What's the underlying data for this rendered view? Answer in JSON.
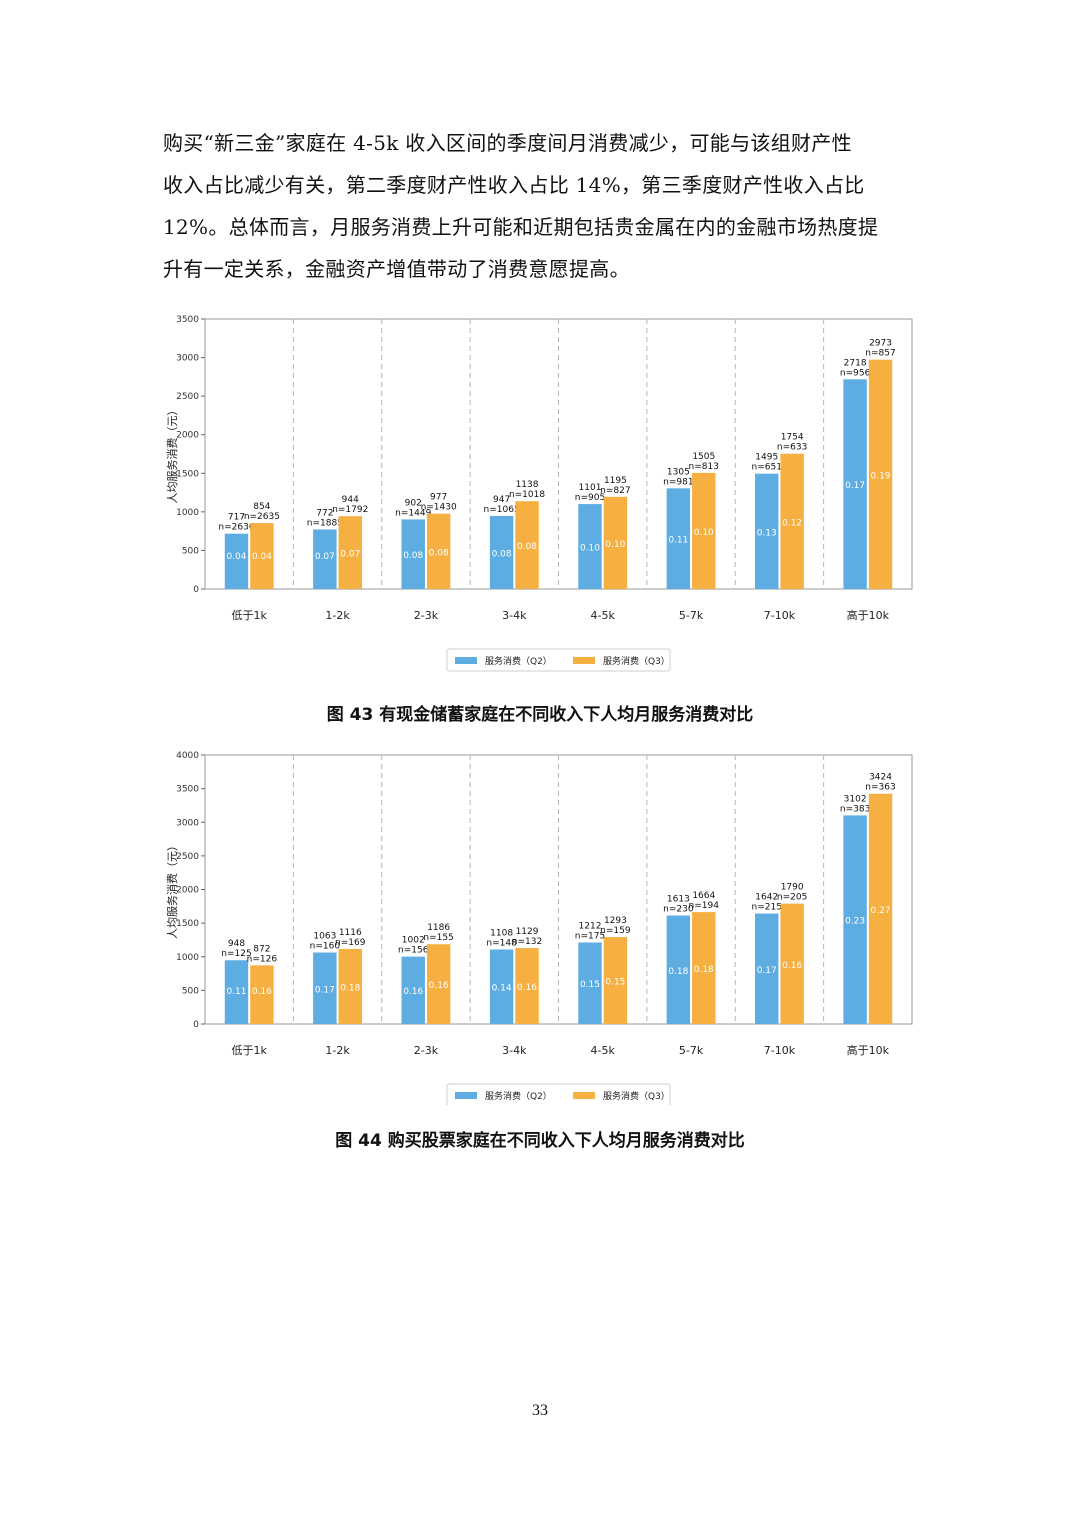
{
  "paragraph": [
    "购买“新三金”家庭在 4-5k 收入区间的季度间月消费减少，可能与该组财产性",
    "收入占比减少有关，第二季度财产性收入占比 14%，第三季度财产性收入占比",
    "12%。总体而言，月服务消费上升可能和近期包括贵金属在内的金融市场热度提",
    "升有一定关系，金融资产增值带动了消费意愿提高。"
  ],
  "chart_data": [
    {
      "type": "bar",
      "ylabel": "人均服务消费（元）",
      "ylim": [
        0,
        3500
      ],
      "yticks": [
        0,
        500,
        1000,
        1500,
        2000,
        2500,
        3000,
        3500
      ],
      "categories": [
        "低于1k",
        "1-2k",
        "2-3k",
        "3-4k",
        "4-5k",
        "5-7k",
        "7-10k",
        "高于10k"
      ],
      "grid": "vertical dashed separators between categories",
      "legend_position": "bottom-center",
      "series": [
        {
          "name": "服务消费（Q2）",
          "color": "#5DADE2",
          "values": [
            717,
            772,
            902,
            947,
            1101,
            1305,
            1495,
            2718
          ],
          "n": [
            "n=2636",
            "n=1885",
            "n=1449",
            "n=1065",
            "n=905",
            "n=981",
            "n=651",
            "n=956"
          ],
          "ratio": [
            "0.04",
            "0.07",
            "0.08",
            "0.08",
            "0.10",
            "0.11",
            "0.13",
            "0.17"
          ]
        },
        {
          "name": "服务消费（Q3）",
          "color": "#F5B041",
          "values": [
            854,
            944,
            977,
            1138,
            1195,
            1505,
            1754,
            2973
          ],
          "n": [
            "n=2635",
            "n=1792",
            "n=1430",
            "n=1018",
            "n=827",
            "n=813",
            "n=633",
            "n=857"
          ],
          "ratio": [
            "0.04",
            "0.07",
            "0.08",
            "0.08",
            "0.10",
            "0.10",
            "0.12",
            "0.19"
          ]
        }
      ]
    },
    {
      "type": "bar",
      "ylabel": "人均服务消费（元）",
      "ylim": [
        0,
        4000
      ],
      "yticks": [
        0,
        500,
        1000,
        1500,
        2000,
        2500,
        3000,
        3500,
        4000
      ],
      "categories": [
        "低于1k",
        "1-2k",
        "2-3k",
        "3-4k",
        "4-5k",
        "5-7k",
        "7-10k",
        "高于10k"
      ],
      "grid": "vertical dashed separators between categories",
      "legend_position": "bottom-center",
      "series": [
        {
          "name": "服务消费（Q2）",
          "color": "#5DADE2",
          "values": [
            948,
            1063,
            1002,
            1108,
            1212,
            1613,
            1642,
            3102
          ],
          "n": [
            "n=125",
            "n=160",
            "n=156",
            "n=148",
            "n=175",
            "n=230",
            "n=215",
            "n=383"
          ],
          "ratio": [
            "0.11",
            "0.17",
            "0.16",
            "0.14",
            "0.15",
            "0.18",
            "0.17",
            "0.23"
          ]
        },
        {
          "name": "服务消费（Q3）",
          "color": "#F5B041",
          "values": [
            872,
            1116,
            1186,
            1129,
            1293,
            1664,
            1790,
            3424
          ],
          "n": [
            "n=126",
            "n=169",
            "n=155",
            "n=132",
            "n=159",
            "n=194",
            "n=205",
            "n=363"
          ],
          "ratio": [
            "0.16",
            "0.18",
            "0.16",
            "0.16",
            "0.15",
            "0.18",
            "0.16",
            "0.27"
          ]
        }
      ]
    }
  ],
  "captions": [
    "图 43 有现金储蓄家庭在不同收入下人均月服务消费对比",
    "图 44 购买股票家庭在不同收入下人均月服务消费对比"
  ],
  "page_number": "33"
}
